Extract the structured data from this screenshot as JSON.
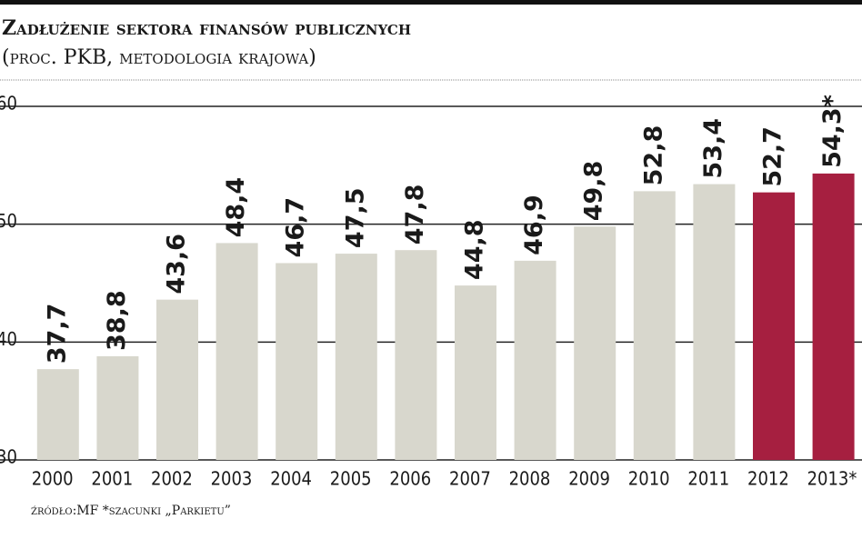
{
  "chart_data": {
    "type": "bar",
    "title": "Zadłużenie sektora finansów publicznych",
    "subtitle": "(proc. PKB, metodologia krajowa)",
    "source": "źródło:MF  *szacunki „Parkietu”",
    "categories": [
      "2000",
      "2001",
      "2002",
      "2003",
      "2004",
      "2005",
      "2006",
      "2007",
      "2008",
      "2009",
      "2010",
      "2011",
      "2012",
      "2013*"
    ],
    "values": [
      37.7,
      38.8,
      43.6,
      48.4,
      46.7,
      47.5,
      47.8,
      44.8,
      46.9,
      49.8,
      52.8,
      53.4,
      52.7,
      54.3
    ],
    "value_labels": [
      "37,7",
      "38,8",
      "43,6",
      "48,4",
      "46,7",
      "47,5",
      "47,8",
      "44,8",
      "46,9",
      "49,8",
      "52,8",
      "53,4",
      "52,7",
      "54,3*"
    ],
    "colors": [
      "#d8d7cd",
      "#d8d7cd",
      "#d8d7cd",
      "#d8d7cd",
      "#d8d7cd",
      "#d8d7cd",
      "#d8d7cd",
      "#d8d7cd",
      "#d8d7cd",
      "#d8d7cd",
      "#d8d7cd",
      "#d8d7cd",
      "#a61f40",
      "#a61f40"
    ],
    "ylim": [
      30,
      60
    ],
    "yticks": [
      30,
      40,
      50,
      60
    ],
    "grid": true
  }
}
